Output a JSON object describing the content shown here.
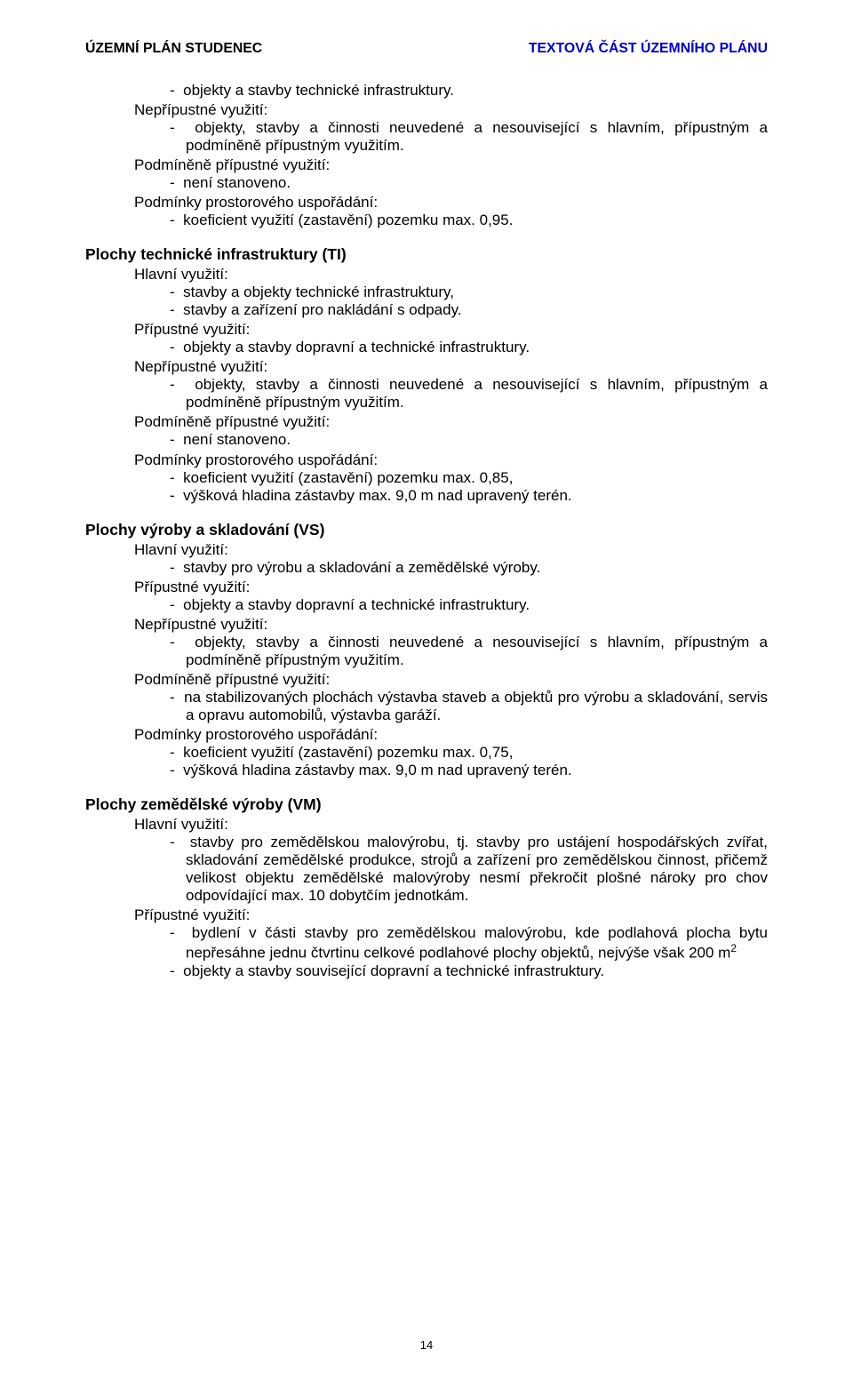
{
  "header": {
    "left": "ÚZEMNÍ PLÁN STUDENEC",
    "right": "TEXTOVÁ ČÁST ÚZEMNÍHO PLÁNU",
    "right_color": "#0000cc"
  },
  "page_number": "14",
  "blocks": [
    {
      "type": "item",
      "text": "objekty a stavby technické infrastruktury."
    },
    {
      "type": "label",
      "text": "Nepřípustné využití:"
    },
    {
      "type": "item",
      "text": "objekty, stavby a činnosti neuvedené a nesouvisející s hlavním, přípustným a podmíněně přípustným využitím.",
      "justify": true
    },
    {
      "type": "label",
      "text": "Podmíněně přípustné využití:"
    },
    {
      "type": "item",
      "text": "není stanoveno."
    },
    {
      "type": "label",
      "text": "Podmínky prostorového uspořádání:"
    },
    {
      "type": "item",
      "text": "koeficient využití (zastavění) pozemku max. 0,95."
    },
    {
      "type": "title",
      "text": "Plochy technické infrastruktury (TI)"
    },
    {
      "type": "label",
      "text": "Hlavní využití:"
    },
    {
      "type": "item",
      "text": "stavby a objekty technické infrastruktury,"
    },
    {
      "type": "item",
      "text": "stavby a zařízení pro nakládání s odpady."
    },
    {
      "type": "label",
      "text": "Přípustné využití:"
    },
    {
      "type": "item",
      "text": "objekty a stavby dopravní a technické infrastruktury."
    },
    {
      "type": "label",
      "text": "Nepřípustné využití:"
    },
    {
      "type": "item",
      "text": "objekty, stavby a činnosti neuvedené a nesouvisející s hlavním, přípustným a podmíněně přípustným využitím.",
      "justify": true
    },
    {
      "type": "label",
      "text": "Podmíněně přípustné využití:"
    },
    {
      "type": "item",
      "text": "není stanoveno."
    },
    {
      "type": "label",
      "text": "Podmínky prostorového uspořádání:"
    },
    {
      "type": "item",
      "text": "koeficient využití (zastavění) pozemku max. 0,85,"
    },
    {
      "type": "item",
      "text": "výšková hladina zástavby max. 9,0 m nad upravený terén."
    },
    {
      "type": "title",
      "text": "Plochy výroby a skladování (VS)"
    },
    {
      "type": "label",
      "text": "Hlavní využití:"
    },
    {
      "type": "item",
      "text": "stavby pro výrobu a skladování a zemědělské výroby."
    },
    {
      "type": "label",
      "text": "Přípustné využití:"
    },
    {
      "type": "item",
      "text": "objekty a stavby dopravní a technické infrastruktury."
    },
    {
      "type": "label",
      "text": "Nepřípustné využití:"
    },
    {
      "type": "item",
      "text": "objekty, stavby a činnosti neuvedené a nesouvisející s hlavním, přípustným a podmíněně přípustným využitím.",
      "justify": true
    },
    {
      "type": "label",
      "text": "Podmíněně přípustné využití:"
    },
    {
      "type": "item",
      "text": "na stabilizovaných plochách výstavba staveb a objektů pro výrobu a skladování, servis a opravu automobilů, výstavba garáží.",
      "justify": true
    },
    {
      "type": "label",
      "text": "Podmínky prostorového uspořádání:"
    },
    {
      "type": "item",
      "text": "koeficient využití (zastavění) pozemku max. 0,75,"
    },
    {
      "type": "item",
      "text": "výšková hladina zástavby max. 9,0 m nad upravený terén."
    },
    {
      "type": "title",
      "text": "Plochy zemědělské výroby (VM)"
    },
    {
      "type": "label",
      "text": "Hlavní využití:"
    },
    {
      "type": "item",
      "text": "stavby pro zemědělskou malovýrobu, tj. stavby pro ustájení hospodářských zvířat, skladování zemědělské produkce, strojů a zařízení pro zemědělskou činnost, přičemž velikost objektu zemědělské malovýroby nesmí překročit plošné nároky pro chov odpovídající max. 10 dobytčím jednotkám.",
      "justify": true
    },
    {
      "type": "label",
      "text": "Přípustné využití:"
    },
    {
      "type": "item",
      "html": "bydlení v části stavby pro zemědělskou malovýrobu, kde podlahová plocha bytu nepřesáhne jednu čtvrtinu celkové podlahové plochy objektů, nejvýše však 200 m<sup>2</sup>",
      "justify": true
    },
    {
      "type": "item",
      "text": "objekty a stavby související dopravní a technické infrastruktury."
    }
  ]
}
